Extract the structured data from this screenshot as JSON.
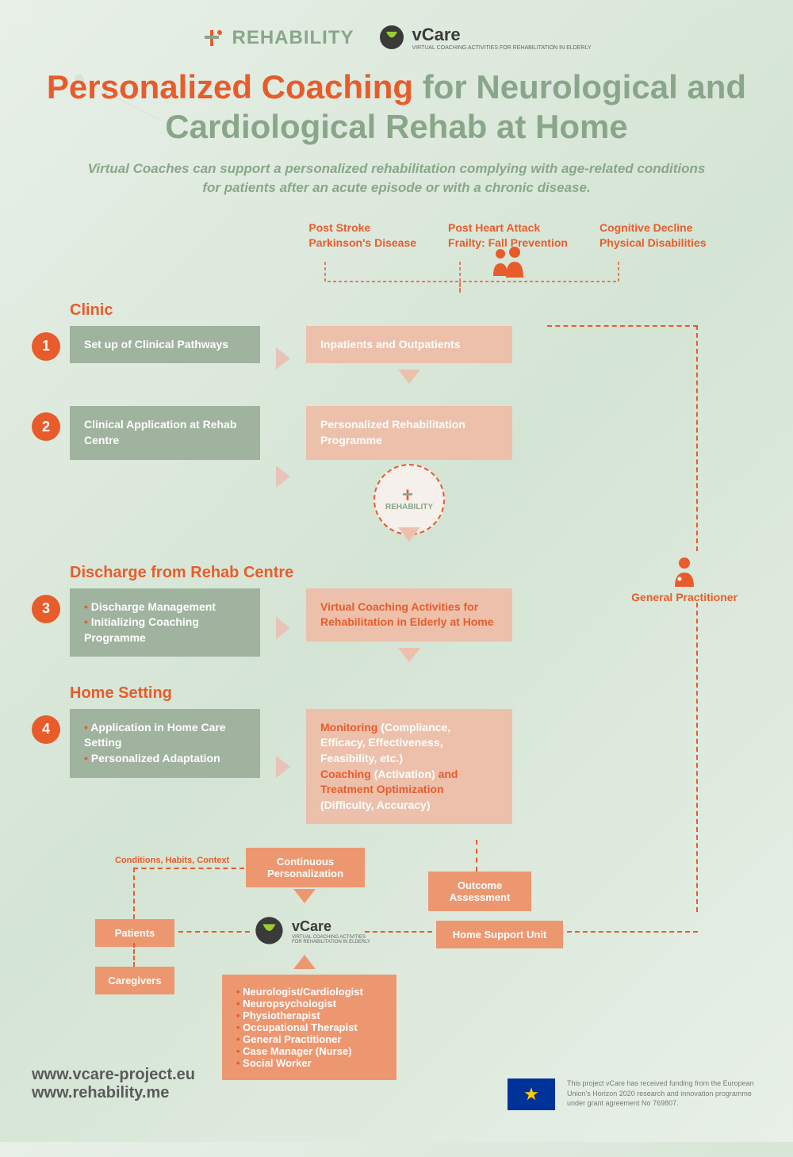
{
  "logos": {
    "rehability": "REHABILITY",
    "vcare": "vCare",
    "vcare_sub": "VIRTUAL COACHING ACTIVITIES\nFOR REHABILITATION IN ELDERLY"
  },
  "title": {
    "part1": "Personalized Coaching",
    "part2": "for Neurological and Cardiological Rehab at Home"
  },
  "subtitle": "Virtual Coaches can support a personalized rehabilitation complying with age-related conditions for patients after an acute episode or with a chronic disease.",
  "conditions": [
    "Post Stroke\nParkinson's Disease",
    "Post Heart Attack\nFrailty: Fall Prevention",
    "Cognitive Decline\nPhysical Disabilities"
  ],
  "sections": [
    {
      "label": "Clinic",
      "num": "1",
      "green": "Set up of Clinical Pathways",
      "peach": "Inpatients and Outpatients"
    },
    {
      "label": "",
      "num": "2",
      "green": "Clinical Application at Rehab Centre",
      "peach": "Personalized Rehabilitation Programme"
    },
    {
      "label": "Discharge from Rehab Centre",
      "num": "3",
      "green_items": [
        "Discharge Management",
        "Initializing Coaching Programme"
      ],
      "peach": "Virtual Coaching Activities for Rehabilitation in Elderly at Home"
    },
    {
      "label": "Home Setting",
      "num": "4",
      "green_items": [
        "Application in Home Care Setting",
        "Personalized Adaptation"
      ],
      "peach_complex": true
    }
  ],
  "monitoring": {
    "m1": "Monitoring",
    "m1d": "(Compliance, Efficacy, Effectiveness, Feasibility, etc.)",
    "m2": "Coaching",
    "m2d": "(Activation)",
    "m2e": "and",
    "m3": "Treatment Optimization",
    "m3d": "(Difficulty, Accuracy)"
  },
  "bottom": {
    "cond_label": "Conditions, Habits, Context",
    "cont_pers": "Continuous Personalization",
    "outcome": "Outcome Assessment",
    "patients": "Patients",
    "caregivers": "Caregivers",
    "home_support": "Home Support Unit",
    "gp": "General Practitioner"
  },
  "specialists": [
    "Neurologist/Cardiologist",
    "Neuropsychologist",
    "Physiotherapist",
    "Occupational Therapist",
    "General Practitioner",
    "Case Manager (Nurse)",
    "Social Worker"
  ],
  "footer": {
    "link1": "www.vcare-project.eu",
    "link2": "www.rehability.me",
    "eu_text": "This project vCare has received funding from the European Union's Horizon 2020 research and innovation programme under grant agreement No 769807."
  },
  "colors": {
    "orange": "#e85c2b",
    "green": "#8aa68a",
    "peach": "#edc0ab",
    "peach_dark": "#ed9770",
    "green_box": "#9fb39f"
  }
}
